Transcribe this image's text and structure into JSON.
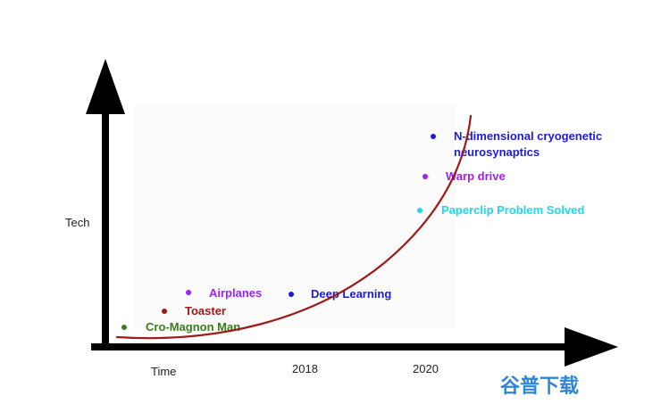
{
  "axes": {
    "y_label": "Tech",
    "x_label": "Time",
    "tick_2018": "2018",
    "tick_2020": "2020"
  },
  "events": {
    "cro_magnon": {
      "label": "Cro-Magnon Man",
      "color": "#3a7d1a"
    },
    "toaster": {
      "label": "Toaster",
      "color": "#a01818"
    },
    "airplanes": {
      "label": "Airplanes",
      "color": "#a020f0"
    },
    "deep_learning": {
      "label": "Deep Learning",
      "color": "#1c1cd8"
    },
    "paperclip": {
      "label": "Paperclip Problem Solved",
      "color": "#22d8e8"
    },
    "warp_drive": {
      "label": "Warp drive",
      "color": "#a020f0"
    },
    "n_dimensional": {
      "line1": "N-dimensional cryogenetic",
      "line2": "neurosynaptics",
      "color": "#1c1cd8"
    }
  },
  "curve_color": "#a01818",
  "watermark": {
    "text": "谷普下载",
    "color": "#2f86d6"
  }
}
